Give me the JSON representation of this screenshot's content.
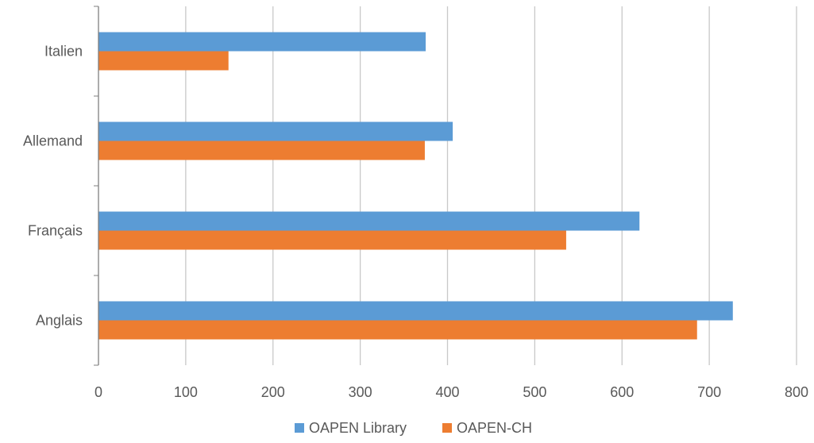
{
  "chart_data": {
    "type": "bar",
    "orientation": "horizontal",
    "categories": [
      "Anglais",
      "Français",
      "Allemand",
      "Italien"
    ],
    "series": [
      {
        "name": "OAPEN Library",
        "values": [
          727,
          620,
          406,
          375
        ],
        "color": "#5B9BD5"
      },
      {
        "name": "OAPEN-CH",
        "values": [
          686,
          536,
          374,
          149
        ],
        "color": "#ED7D31"
      }
    ],
    "xlim": [
      0,
      800
    ],
    "xticks": [
      0,
      100,
      200,
      300,
      400,
      500,
      600,
      700,
      800
    ],
    "grid": true,
    "legend_position": "bottom"
  },
  "colors": {
    "gridline": "#C8C8C8",
    "axis": "#7F7F7F",
    "text": "#595959"
  }
}
